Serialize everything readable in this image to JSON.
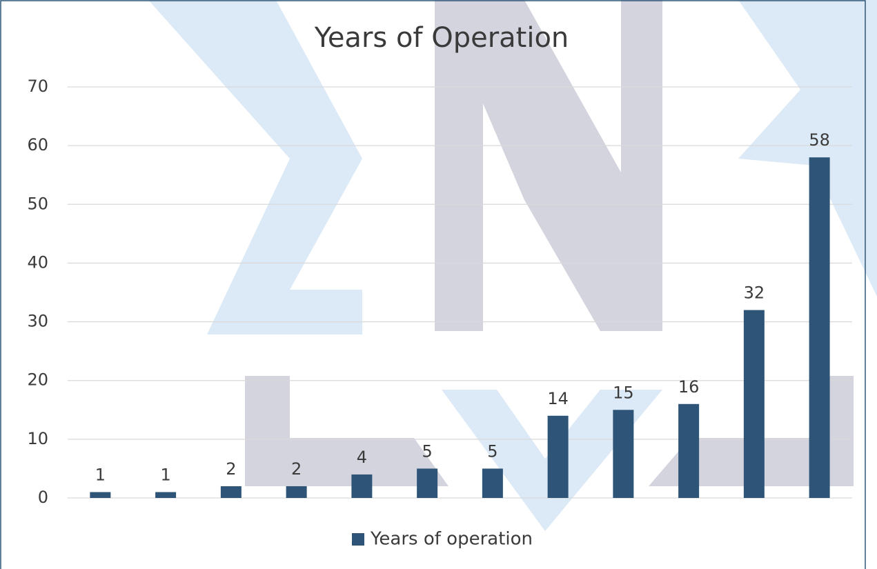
{
  "chart_data": {
    "type": "bar",
    "title": "Years of Operation",
    "categories": [
      null,
      null,
      null,
      null,
      null,
      null,
      null,
      null,
      null,
      null,
      null,
      null
    ],
    "series": [
      {
        "name": "Years of operation",
        "color": "#2e5577",
        "values": [
          1,
          1,
          2,
          2,
          4,
          5,
          5,
          14,
          15,
          16,
          32,
          58
        ]
      }
    ],
    "ylim": [
      0,
      70
    ],
    "yticks": [
      0,
      10,
      20,
      30,
      40,
      50,
      60,
      70
    ],
    "grid": true,
    "legend": "bottom"
  }
}
